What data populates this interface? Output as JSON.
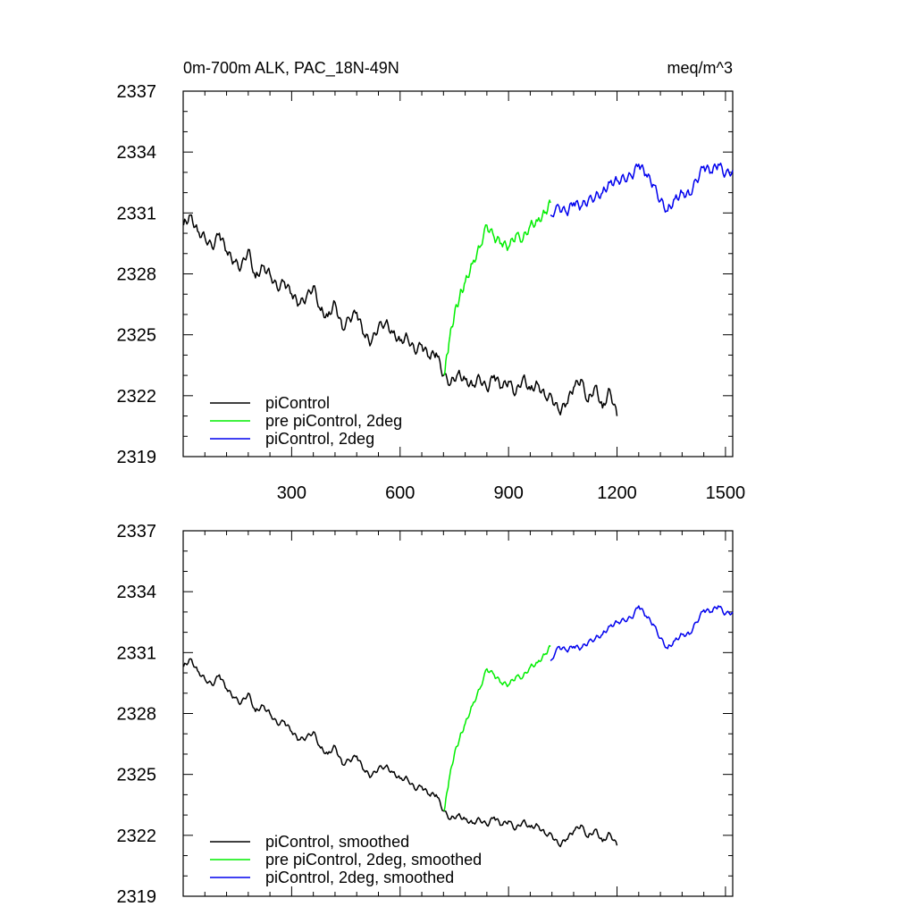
{
  "header": {
    "left_title": "0m-700m ALK, PAC_18N-49N",
    "right_title": "meq/m^3"
  },
  "colors": {
    "black": "#000000",
    "green": "#00ee00",
    "blue": "#0000ee"
  },
  "chart_data": [
    {
      "type": "line",
      "title": "0m-700m ALK, PAC_18N-49N",
      "units": "meq/m^3",
      "xlim": [
        0,
        1520
      ],
      "ylim": [
        2319,
        2337
      ],
      "xticks": [
        300,
        600,
        900,
        1200,
        1500
      ],
      "yticks": [
        2319,
        2322,
        2325,
        2328,
        2331,
        2334,
        2337
      ],
      "grid": false,
      "legend_position": "bottom-left",
      "series": [
        {
          "name": "piControl",
          "color": "#000000",
          "x": [
            1,
            20,
            40,
            60,
            80,
            100,
            120,
            140,
            160,
            180,
            200,
            220,
            240,
            260,
            280,
            300,
            320,
            340,
            360,
            380,
            400,
            420,
            440,
            460,
            480,
            500,
            520,
            540,
            560,
            580,
            600,
            620,
            640,
            660,
            680,
            700,
            720,
            740,
            760,
            780,
            800,
            820,
            840,
            860,
            880,
            900,
            920,
            940,
            960,
            980,
            1000,
            1020,
            1040,
            1060,
            1080,
            1100,
            1120,
            1140,
            1160,
            1180,
            1200
          ],
          "y": [
            2330.4,
            2330.9,
            2330.1,
            2329.8,
            2329.3,
            2330.0,
            2329.1,
            2328.6,
            2328.3,
            2329.2,
            2327.8,
            2328.4,
            2328.0,
            2327.3,
            2327.6,
            2327.0,
            2326.5,
            2326.8,
            2327.4,
            2326.2,
            2325.9,
            2326.6,
            2325.3,
            2325.8,
            2326.1,
            2325.0,
            2324.6,
            2325.4,
            2325.6,
            2325.1,
            2324.7,
            2324.9,
            2324.2,
            2324.5,
            2323.9,
            2324.1,
            2323.0,
            2322.6,
            2323.1,
            2322.8,
            2322.5,
            2322.9,
            2322.3,
            2323.0,
            2322.4,
            2322.7,
            2322.1,
            2322.9,
            2322.3,
            2322.6,
            2322.0,
            2321.9,
            2321.2,
            2321.6,
            2322.4,
            2322.8,
            2321.7,
            2322.5,
            2321.4,
            2322.3,
            2321.0
          ]
        },
        {
          "name": "pre piControl, 2deg",
          "color": "#00ee00",
          "x": [
            722,
            735,
            750,
            765,
            780,
            800,
            820,
            840,
            860,
            880,
            900,
            920,
            940,
            960,
            980,
            1000,
            1016
          ],
          "y": [
            2323.0,
            2324.6,
            2326.0,
            2326.9,
            2327.6,
            2328.5,
            2329.3,
            2330.4,
            2329.8,
            2329.5,
            2329.3,
            2329.9,
            2329.7,
            2330.4,
            2330.6,
            2331.0,
            2331.5
          ]
        },
        {
          "name": "piControl, 2deg",
          "color": "#0000ee",
          "x": [
            1016,
            1040,
            1060,
            1080,
            1100,
            1120,
            1140,
            1160,
            1180,
            1200,
            1220,
            1240,
            1260,
            1280,
            1300,
            1320,
            1340,
            1360,
            1380,
            1400,
            1420,
            1440,
            1460,
            1480,
            1500,
            1520
          ],
          "y": [
            2330.9,
            2331.3,
            2331.0,
            2331.5,
            2331.3,
            2331.6,
            2331.8,
            2332.0,
            2332.5,
            2332.6,
            2332.7,
            2332.8,
            2333.4,
            2332.9,
            2332.4,
            2331.6,
            2331.1,
            2331.7,
            2332.0,
            2331.9,
            2332.6,
            2333.3,
            2333.0,
            2333.4,
            2332.9,
            2333.1
          ]
        }
      ]
    },
    {
      "type": "line",
      "xlim": [
        0,
        1520
      ],
      "ylim": [
        2319,
        2337
      ],
      "xticks": [
        300,
        600,
        900,
        1200,
        1500
      ],
      "yticks": [
        2319,
        2322,
        2325,
        2328,
        2331,
        2334,
        2337
      ],
      "grid": false,
      "legend_position": "bottom-left",
      "series": [
        {
          "name": "piControl, smoothed",
          "color": "#000000",
          "x": [
            1,
            20,
            40,
            60,
            80,
            100,
            120,
            140,
            160,
            180,
            200,
            220,
            240,
            260,
            280,
            300,
            320,
            340,
            360,
            380,
            400,
            420,
            440,
            460,
            480,
            500,
            520,
            540,
            560,
            580,
            600,
            620,
            640,
            660,
            680,
            700,
            720,
            740,
            760,
            780,
            800,
            820,
            840,
            860,
            880,
            900,
            920,
            940,
            960,
            980,
            1000,
            1020,
            1040,
            1060,
            1080,
            1100,
            1120,
            1140,
            1160,
            1180,
            1200
          ],
          "y": [
            2330.3,
            2330.7,
            2330.1,
            2329.7,
            2329.4,
            2329.9,
            2329.2,
            2328.8,
            2328.5,
            2329.0,
            2328.1,
            2328.4,
            2328.0,
            2327.5,
            2327.6,
            2327.1,
            2326.7,
            2326.8,
            2327.1,
            2326.3,
            2326.0,
            2326.4,
            2325.5,
            2325.7,
            2325.9,
            2325.2,
            2324.9,
            2325.3,
            2325.4,
            2325.1,
            2324.8,
            2324.8,
            2324.3,
            2324.4,
            2324.0,
            2324.0,
            2323.2,
            2322.8,
            2323.0,
            2322.8,
            2322.6,
            2322.8,
            2322.5,
            2322.9,
            2322.5,
            2322.7,
            2322.3,
            2322.7,
            2322.4,
            2322.5,
            2322.1,
            2322.0,
            2321.5,
            2321.8,
            2322.2,
            2322.5,
            2321.9,
            2322.3,
            2321.7,
            2322.1,
            2321.5
          ]
        },
        {
          "name": "pre piControl, 2deg, smoothed",
          "color": "#00ee00",
          "x": [
            722,
            735,
            750,
            765,
            780,
            800,
            820,
            840,
            860,
            880,
            900,
            920,
            940,
            960,
            980,
            1000,
            1016
          ],
          "y": [
            2323.2,
            2324.7,
            2326.0,
            2326.8,
            2327.5,
            2328.4,
            2329.2,
            2330.2,
            2329.9,
            2329.5,
            2329.4,
            2329.8,
            2329.8,
            2330.3,
            2330.5,
            2330.9,
            2331.3
          ]
        },
        {
          "name": "piControl, 2deg, smoothed",
          "color": "#0000ee",
          "x": [
            1016,
            1040,
            1060,
            1080,
            1100,
            1120,
            1140,
            1160,
            1180,
            1200,
            1220,
            1240,
            1260,
            1280,
            1300,
            1320,
            1340,
            1360,
            1380,
            1400,
            1420,
            1440,
            1460,
            1480,
            1500,
            1520
          ],
          "y": [
            2330.6,
            2331.3,
            2331.1,
            2331.3,
            2331.2,
            2331.5,
            2331.7,
            2331.9,
            2332.3,
            2332.5,
            2332.6,
            2332.7,
            2333.3,
            2332.8,
            2332.4,
            2331.7,
            2331.2,
            2331.6,
            2331.9,
            2331.9,
            2332.5,
            2333.1,
            2333.0,
            2333.3,
            2332.9,
            2333.0
          ]
        }
      ]
    }
  ]
}
